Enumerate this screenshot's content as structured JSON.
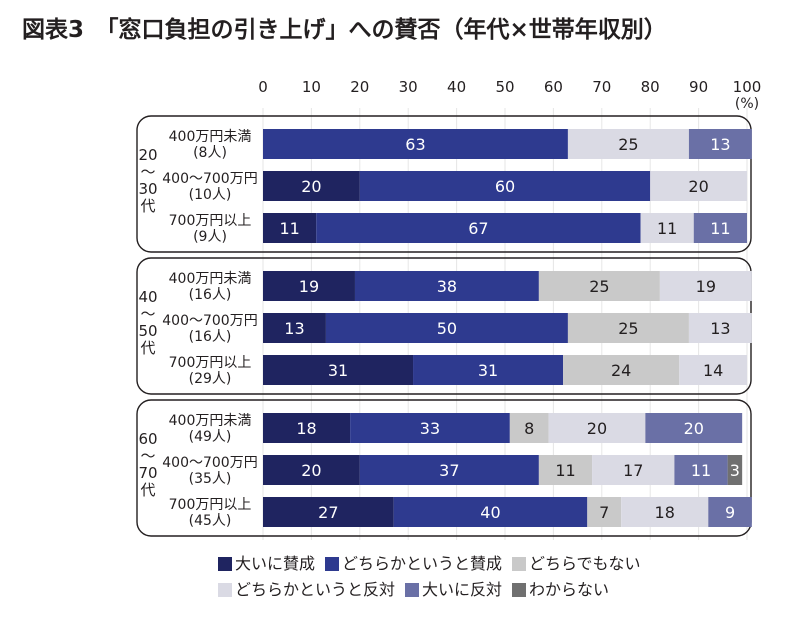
{
  "title": "図表3　「窓口負担の引き上げ」への賛否（年代×世帯年収別）",
  "chart_data": {
    "type": "bar",
    "orientation": "horizontal-stacked-100",
    "title": "図表3　「窓口負担の引き上げ」への賛否（年代×世帯年収別）",
    "xlabel": "(%)",
    "xlim": [
      0,
      100
    ],
    "xticks": [
      "0",
      "10",
      "20",
      "30",
      "40",
      "50",
      "60",
      "70",
      "80",
      "90",
      "100"
    ],
    "unit_label": "(%)",
    "grid": true,
    "legend_position": "bottom",
    "series": [
      {
        "name": "大いに賛成",
        "color": "#1f2460"
      },
      {
        "name": "どちらかというと賛成",
        "color": "#2e3a8f"
      },
      {
        "name": "どちらでもない",
        "color": "#c9c9c9"
      },
      {
        "name": "どちらかというと反対",
        "color": "#dadae4"
      },
      {
        "name": "大いに反対",
        "color": "#6a70a6"
      },
      {
        "name": "わからない",
        "color": "#707070"
      }
    ],
    "groups": [
      {
        "label": "20〜30代",
        "label_lines": [
          "20",
          "〜",
          "30",
          "代"
        ],
        "rows": [
          {
            "label": "400万円未満",
            "n": "(8人)",
            "values": [
              0,
              63,
              0,
              25,
              13,
              0
            ]
          },
          {
            "label": "400〜700万円",
            "n": "(10人)",
            "values": [
              20,
              60,
              0,
              20,
              0,
              0
            ]
          },
          {
            "label": "700万円以上",
            "n": "(9人)",
            "values": [
              11,
              67,
              0,
              11,
              11,
              0
            ]
          }
        ]
      },
      {
        "label": "40〜50代",
        "label_lines": [
          "40",
          "〜",
          "50",
          "代"
        ],
        "rows": [
          {
            "label": "400万円未満",
            "n": "(16人)",
            "values": [
              19,
              38,
              25,
              19,
              0,
              0
            ]
          },
          {
            "label": "400〜700万円",
            "n": "(16人)",
            "values": [
              13,
              50,
              25,
              13,
              0,
              0
            ]
          },
          {
            "label": "700万円以上",
            "n": "(29人)",
            "values": [
              31,
              31,
              24,
              14,
              0,
              0
            ]
          }
        ]
      },
      {
        "label": "60〜70代",
        "label_lines": [
          "60",
          "〜",
          "70",
          "代"
        ],
        "rows": [
          {
            "label": "400万円未満",
            "n": "(49人)",
            "values": [
              18,
              33,
              8,
              20,
              20,
              0
            ]
          },
          {
            "label": "400〜700万円",
            "n": "(35人)",
            "values": [
              20,
              37,
              11,
              17,
              11,
              3
            ]
          },
          {
            "label": "700万円以上",
            "n": "(45人)",
            "values": [
              27,
              40,
              7,
              18,
              9,
              0
            ]
          }
        ]
      }
    ]
  }
}
